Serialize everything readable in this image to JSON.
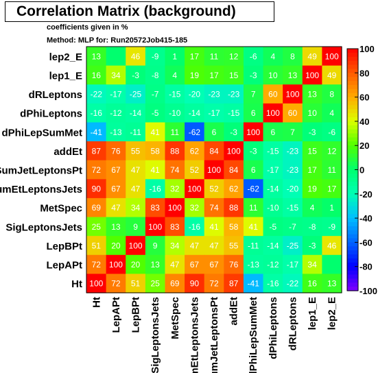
{
  "title": "Correlation Matrix (background)",
  "subtitle": "coefficients given in %",
  "method_line": "Method: MLP for: Run20572Job415-185",
  "chart_data": {
    "type": "heatmap",
    "variables": [
      "Ht",
      "LepAPt",
      "LepBPt",
      "SigLeptonsJets",
      "MetSpec",
      "SumEtLeptonsJets",
      "VSumJetLeptonsPt",
      "addEt",
      "dPhiLepSumMet",
      "dPhiLeptons",
      "dRLeptons",
      "lep1_E",
      "lep2_E"
    ],
    "row_labels": [
      "lep2_E",
      "lep1_E",
      "dRLeptons",
      "dPhiLeptons",
      "dPhiLepSumMet",
      "addEt",
      "VSumJetLeptonsPt",
      "SumEtLeptonsJets",
      "MetSpec",
      "SigLeptonsJets",
      "LepBPt",
      "LepAPt",
      "Ht"
    ],
    "column_labels": [
      "Ht",
      "LepAPt",
      "LepBPt",
      "SigLeptonsJets",
      "MetSpec",
      "SumEtLeptonsJets",
      "VSumJetLeptonsPt",
      "addEt",
      "dPhiLepSumMet",
      "dPhiLeptons",
      "dRLeptons",
      "lep1_E",
      "lep2_E"
    ],
    "values": [
      [
        13,
        null,
        46,
        -9,
        1,
        17,
        11,
        12,
        -6,
        4,
        8,
        49,
        100
      ],
      [
        16,
        34,
        -3,
        -8,
        4,
        19,
        17,
        15,
        -3,
        10,
        13,
        100,
        49
      ],
      [
        -22,
        -17,
        -25,
        -7,
        -15,
        -20,
        -23,
        -23,
        7,
        60,
        100,
        13,
        8
      ],
      [
        -16,
        -12,
        -14,
        -5,
        -10,
        -14,
        -17,
        -15,
        6,
        100,
        60,
        10,
        4
      ],
      [
        -41,
        -13,
        -11,
        41,
        11,
        -62,
        6,
        -3,
        100,
        6,
        7,
        -3,
        -6
      ],
      [
        87,
        76,
        55,
        58,
        88,
        62,
        84,
        100,
        -3,
        -15,
        -23,
        15,
        12
      ],
      [
        72,
        67,
        47,
        41,
        74,
        52,
        100,
        84,
        6,
        -17,
        -23,
        17,
        11
      ],
      [
        90,
        67,
        47,
        -16,
        32,
        100,
        52,
        62,
        -62,
        -14,
        -20,
        19,
        17
      ],
      [
        69,
        47,
        34,
        83,
        100,
        32,
        74,
        88,
        11,
        -10,
        -15,
        4,
        1
      ],
      [
        25,
        13,
        9,
        100,
        83,
        -16,
        41,
        58,
        41,
        -5,
        -7,
        -8,
        -9
      ],
      [
        51,
        20,
        100,
        9,
        34,
        47,
        47,
        55,
        -11,
        -14,
        -25,
        -3,
        46
      ],
      [
        72,
        100,
        20,
        13,
        47,
        67,
        67,
        76,
        -13,
        -12,
        -17,
        34,
        null
      ],
      [
        100,
        72,
        51,
        25,
        69,
        90,
        72,
        87,
        -41,
        -16,
        -22,
        16,
        13
      ]
    ],
    "zlim": [
      -100,
      100
    ],
    "colorbar_ticks": [
      "100",
      "80",
      "60",
      "40",
      "20",
      "0",
      "-20",
      "-40",
      "-60",
      "-80",
      "-100"
    ]
  }
}
